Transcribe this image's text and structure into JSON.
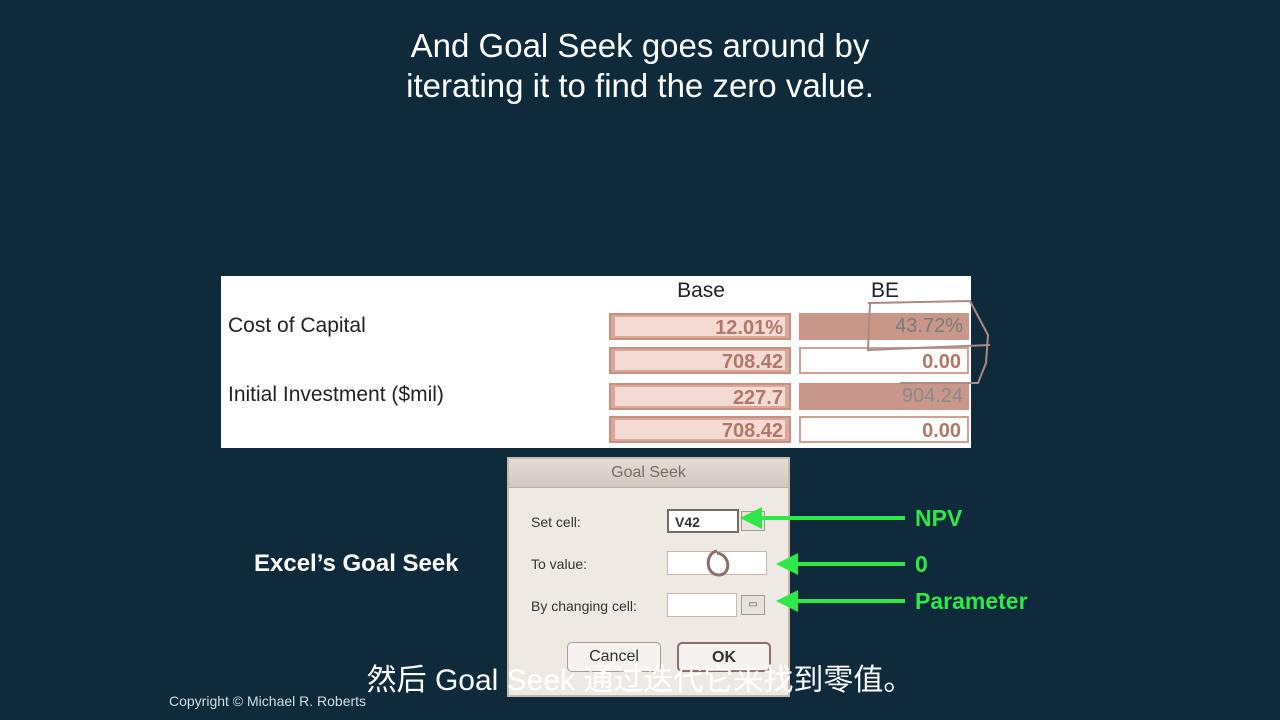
{
  "slide": {
    "title_line1": "And Goal Seek goes around by",
    "title_line2": "iterating it to find the zero value."
  },
  "table": {
    "col_base": "Base",
    "col_be": "BE",
    "row_cost_of_capital": "Cost of Capital",
    "row_initial_investment": "Initial Investment ($mil)",
    "base_values": [
      "12.01%",
      "708.42",
      "227.7",
      "708.42"
    ],
    "be_values": [
      "43.72%",
      "0.00",
      "904.24",
      "0.00"
    ]
  },
  "dialog": {
    "title": "Goal Seek",
    "set_cell_label": "Set cell:",
    "set_cell_value": "V42",
    "to_value_label": "To value:",
    "to_value_value": "",
    "by_changing_label": "By changing cell:",
    "by_changing_value": "",
    "cancel_label": "Cancel",
    "ok_label": "OK"
  },
  "annotations": {
    "excel_label": "Excel’s Goal Seek",
    "npv": "NPV",
    "zero": "0",
    "parameter": "Parameter"
  },
  "subtitle": "然后 Goal Seek 通过迭代它来找到零值。",
  "copyright": "Copyright © Michael R. Roberts",
  "colors": {
    "background": "#0e2a3b",
    "arrow_green": "#2ee84a",
    "cell_shade": "#d9a89a"
  }
}
